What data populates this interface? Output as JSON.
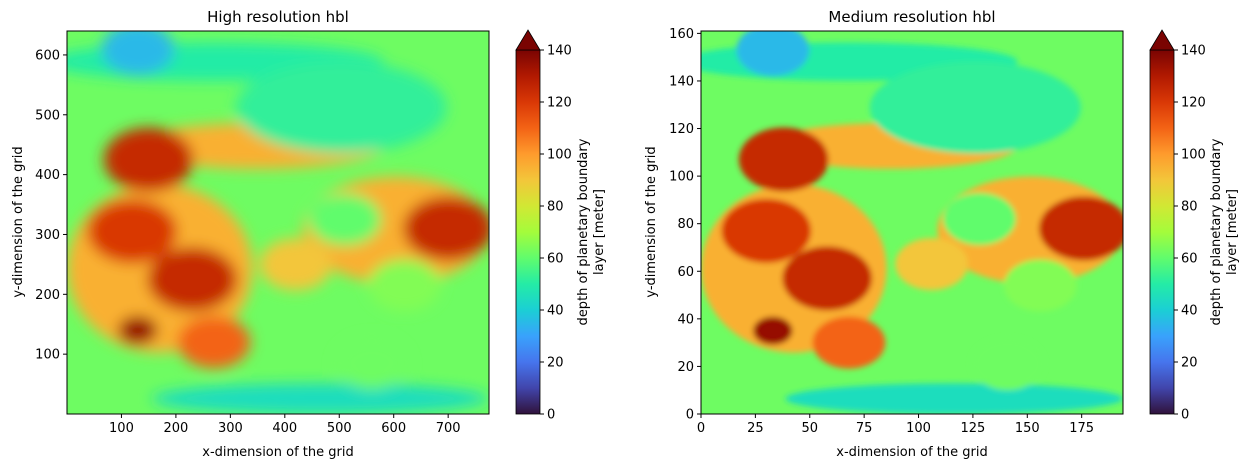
{
  "chart_data": [
    {
      "type": "heatmap",
      "title": "High resolution hbl",
      "xlabel": "x-dimension of the grid",
      "ylabel": "y-dimension of the grid",
      "xlim": [
        0,
        775
      ],
      "ylim": [
        0,
        640
      ],
      "xticks": [
        100,
        200,
        300,
        400,
        500,
        600,
        700
      ],
      "yticks": [
        100,
        200,
        300,
        400,
        500,
        600
      ],
      "colorbar": {
        "label_lines": [
          "depth of planetary boundary",
          "layer [meter]"
        ],
        "range": [
          0,
          140
        ],
        "ticks": [
          0,
          20,
          40,
          60,
          80,
          100,
          120,
          140
        ],
        "extend": "max",
        "colormap": "turbo"
      },
      "features": [
        {
          "x": 130,
          "y": 140,
          "value": 135
        },
        {
          "x": 230,
          "y": 225,
          "value": 125
        },
        {
          "x": 120,
          "y": 305,
          "value": 120
        },
        {
          "x": 150,
          "y": 425,
          "value": 125
        },
        {
          "x": 510,
          "y": 325,
          "value": 60
        },
        {
          "x": 420,
          "y": 250,
          "value": 90
        },
        {
          "x": 620,
          "y": 215,
          "value": 65
        },
        {
          "x": 560,
          "y": 85,
          "value": 62
        },
        {
          "x": 700,
          "y": 310,
          "value": 125
        },
        {
          "x": 130,
          "y": 610,
          "value": 35
        },
        {
          "x": 270,
          "y": 120,
          "value": 110
        }
      ]
    },
    {
      "type": "heatmap",
      "title": "Medium resolution hbl",
      "xlabel": "x-dimension of the grid",
      "ylabel": "y-dimension of the grid",
      "xlim": [
        0,
        194
      ],
      "ylim": [
        0,
        161
      ],
      "xticks": [
        0,
        25,
        50,
        75,
        100,
        125,
        150,
        175
      ],
      "yticks": [
        0,
        20,
        40,
        60,
        80,
        100,
        120,
        140,
        160
      ],
      "colorbar": {
        "label_lines": [
          "depth of planetary boundary",
          "layer [meter]"
        ],
        "range": [
          0,
          140
        ],
        "ticks": [
          0,
          20,
          40,
          60,
          80,
          100,
          120,
          140
        ],
        "extend": "max",
        "colormap": "turbo"
      },
      "features": [
        {
          "x": 33,
          "y": 35,
          "value": 135
        },
        {
          "x": 58,
          "y": 57,
          "value": 125
        },
        {
          "x": 30,
          "y": 77,
          "value": 120
        },
        {
          "x": 38,
          "y": 107,
          "value": 125
        },
        {
          "x": 128,
          "y": 82,
          "value": 60
        },
        {
          "x": 106,
          "y": 63,
          "value": 90
        },
        {
          "x": 156,
          "y": 54,
          "value": 65
        },
        {
          "x": 141,
          "y": 21,
          "value": 62
        },
        {
          "x": 176,
          "y": 78,
          "value": 125
        },
        {
          "x": 33,
          "y": 153,
          "value": 35
        },
        {
          "x": 68,
          "y": 30,
          "value": 110
        }
      ]
    }
  ]
}
